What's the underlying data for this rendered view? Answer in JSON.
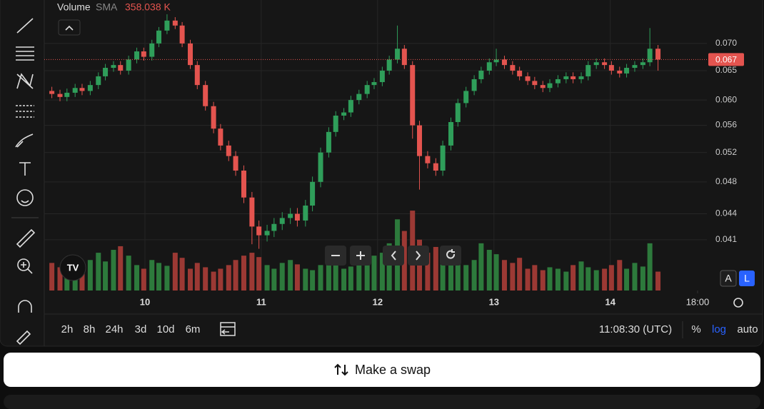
{
  "chart_data": {
    "type": "candlestick",
    "log_scale": true,
    "grid": true,
    "legend": {
      "title": "Volume",
      "indicator": "SMA",
      "value": "358.038 K"
    },
    "x": [
      9.2,
      9.27,
      9.33,
      9.4,
      9.46,
      9.53,
      9.6,
      9.66,
      9.73,
      9.79,
      9.86,
      9.93,
      9.99,
      10.06,
      10.12,
      10.19,
      10.26,
      10.32,
      10.39,
      10.45,
      10.52,
      10.59,
      10.65,
      10.72,
      10.78,
      10.85,
      10.92,
      10.98,
      11.05,
      11.11,
      11.18,
      11.25,
      11.31,
      11.38,
      11.44,
      11.51,
      11.58,
      11.64,
      11.71,
      11.77,
      11.84,
      11.91,
      11.97,
      12.04,
      12.1,
      12.17,
      12.23,
      12.3,
      12.36,
      12.43,
      12.5,
      12.56,
      12.63,
      12.69,
      12.76,
      12.83,
      12.89,
      12.96,
      13.02,
      13.09,
      13.16,
      13.22,
      13.29,
      13.35,
      13.42,
      13.48,
      13.55,
      13.62,
      13.68,
      13.75,
      13.81,
      13.88,
      13.95,
      14.01,
      14.08,
      14.14,
      14.21,
      14.28,
      14.34,
      14.41
    ],
    "ohlc": [
      [
        0.0615,
        0.0622,
        0.0603,
        0.061
      ],
      [
        0.061,
        0.0617,
        0.0598,
        0.0605
      ],
      [
        0.0605,
        0.0619,
        0.0598,
        0.0612
      ],
      [
        0.0612,
        0.0627,
        0.0605,
        0.062
      ],
      [
        0.062,
        0.0627,
        0.0608,
        0.0615
      ],
      [
        0.0615,
        0.0632,
        0.0608,
        0.0625
      ],
      [
        0.0625,
        0.0647,
        0.0618,
        0.064
      ],
      [
        0.064,
        0.0662,
        0.0633,
        0.0655
      ],
      [
        0.0655,
        0.0667,
        0.0648,
        0.066
      ],
      [
        0.066,
        0.0667,
        0.0643,
        0.065
      ],
      [
        0.065,
        0.0677,
        0.0643,
        0.067
      ],
      [
        0.067,
        0.0692,
        0.0663,
        0.0685
      ],
      [
        0.0685,
        0.0692,
        0.0668,
        0.0675
      ],
      [
        0.0675,
        0.0707,
        0.0668,
        0.07
      ],
      [
        0.07,
        0.0732,
        0.0693,
        0.0725
      ],
      [
        0.0725,
        0.0758,
        0.0718,
        0.0745
      ],
      [
        0.0745,
        0.0752,
        0.0728,
        0.0735
      ],
      [
        0.0735,
        0.0742,
        0.0693,
        0.07
      ],
      [
        0.07,
        0.0707,
        0.0653,
        0.066
      ],
      [
        0.066,
        0.0667,
        0.0618,
        0.0625
      ],
      [
        0.0625,
        0.0632,
        0.0583,
        0.059
      ],
      [
        0.059,
        0.0597,
        0.0548,
        0.0555
      ],
      [
        0.0555,
        0.0562,
        0.0523,
        0.053
      ],
      [
        0.053,
        0.0537,
        0.0508,
        0.0515
      ],
      [
        0.0515,
        0.0522,
        0.0488,
        0.0495
      ],
      [
        0.0495,
        0.0502,
        0.0453,
        0.046
      ],
      [
        0.046,
        0.0467,
        0.0405,
        0.0425
      ],
      [
        0.0425,
        0.0432,
        0.04,
        0.0415
      ],
      [
        0.0415,
        0.0427,
        0.0408,
        0.042
      ],
      [
        0.042,
        0.0435,
        0.0413,
        0.0428
      ],
      [
        0.0428,
        0.0442,
        0.0421,
        0.0435
      ],
      [
        0.0435,
        0.0447,
        0.0428,
        0.044
      ],
      [
        0.044,
        0.0447,
        0.0425,
        0.0432
      ],
      [
        0.0432,
        0.0457,
        0.0425,
        0.045
      ],
      [
        0.045,
        0.0487,
        0.0443,
        0.048
      ],
      [
        0.048,
        0.0527,
        0.0473,
        0.052
      ],
      [
        0.052,
        0.0557,
        0.0513,
        0.055
      ],
      [
        0.055,
        0.0582,
        0.0543,
        0.0575
      ],
      [
        0.0575,
        0.0587,
        0.0568,
        0.058
      ],
      [
        0.058,
        0.0607,
        0.0573,
        0.06
      ],
      [
        0.06,
        0.0617,
        0.0593,
        0.061
      ],
      [
        0.061,
        0.0632,
        0.0603,
        0.0625
      ],
      [
        0.0625,
        0.0637,
        0.0618,
        0.063
      ],
      [
        0.063,
        0.0657,
        0.0623,
        0.065
      ],
      [
        0.065,
        0.0677,
        0.0643,
        0.067
      ],
      [
        0.067,
        0.0735,
        0.0663,
        0.069
      ],
      [
        0.069,
        0.0697,
        0.0653,
        0.066
      ],
      [
        0.066,
        0.0667,
        0.054,
        0.056
      ],
      [
        0.056,
        0.0567,
        0.047,
        0.0515
      ],
      [
        0.0515,
        0.0522,
        0.0498,
        0.0505
      ],
      [
        0.0505,
        0.0512,
        0.0488,
        0.0495
      ],
      [
        0.0495,
        0.0537,
        0.0488,
        0.053
      ],
      [
        0.053,
        0.0572,
        0.0523,
        0.0565
      ],
      [
        0.0565,
        0.0602,
        0.0558,
        0.0595
      ],
      [
        0.0595,
        0.0622,
        0.0588,
        0.0615
      ],
      [
        0.0615,
        0.0642,
        0.0608,
        0.0635
      ],
      [
        0.0635,
        0.0657,
        0.0628,
        0.065
      ],
      [
        0.065,
        0.0672,
        0.0643,
        0.0665
      ],
      [
        0.0665,
        0.069,
        0.0658,
        0.067
      ],
      [
        0.067,
        0.0677,
        0.0653,
        0.066
      ],
      [
        0.066,
        0.0667,
        0.0643,
        0.065
      ],
      [
        0.065,
        0.0657,
        0.0633,
        0.064
      ],
      [
        0.064,
        0.0647,
        0.0625,
        0.0632
      ],
      [
        0.0632,
        0.0639,
        0.0618,
        0.0625
      ],
      [
        0.0625,
        0.0632,
        0.0613,
        0.062
      ],
      [
        0.062,
        0.0635,
        0.0613,
        0.0628
      ],
      [
        0.0628,
        0.0642,
        0.0621,
        0.0635
      ],
      [
        0.0635,
        0.0647,
        0.0628,
        0.064
      ],
      [
        0.064,
        0.0647,
        0.0628,
        0.0635
      ],
      [
        0.0635,
        0.0647,
        0.0628,
        0.064
      ],
      [
        0.064,
        0.0667,
        0.0633,
        0.066
      ],
      [
        0.066,
        0.0672,
        0.0653,
        0.0665
      ],
      [
        0.0665,
        0.0672,
        0.0653,
        0.066
      ],
      [
        0.066,
        0.0667,
        0.0643,
        0.065
      ],
      [
        0.065,
        0.0657,
        0.0638,
        0.0645
      ],
      [
        0.0645,
        0.0662,
        0.0638,
        0.0655
      ],
      [
        0.0655,
        0.0667,
        0.0648,
        0.066
      ],
      [
        0.066,
        0.0672,
        0.0653,
        0.0665
      ],
      [
        0.0665,
        0.073,
        0.0658,
        0.069
      ],
      [
        0.069,
        0.0697,
        0.065,
        0.067
      ]
    ],
    "volume": [
      380,
      320,
      450,
      300,
      280,
      420,
      520,
      400,
      560,
      610,
      480,
      350,
      300,
      420,
      380,
      340,
      520,
      450,
      300,
      380,
      320,
      260,
      300,
      350,
      420,
      480,
      520,
      460,
      350,
      300,
      380,
      420,
      360,
      300,
      280,
      350,
      420,
      380,
      300,
      330,
      420,
      360,
      480,
      520,
      650,
      980,
      820,
      1100,
      700,
      520,
      600,
      480,
      420,
      380,
      350,
      420,
      650,
      560,
      500,
      420,
      380,
      450,
      300,
      350,
      280,
      320,
      300,
      260,
      350,
      400,
      320,
      280,
      300,
      350,
      420,
      300,
      380,
      330,
      650,
      260
    ],
    "up_color": "#2f9e5a",
    "down_color": "#e4544f",
    "volume_up_color": "#2d7a3c",
    "volume_down_color": "#9c3934",
    "xlim": [
      9.184,
      14.83
    ],
    "xticks": [
      10,
      11,
      12,
      13,
      14,
      {
        "value": 14.75,
        "label": "18:00"
      }
    ],
    "ylim": [
      0.0357,
      0.0788
    ],
    "yticks": [
      {
        "value": 0.041,
        "label": "0.041"
      },
      {
        "value": 0.044,
        "label": "0.044"
      },
      {
        "value": 0.048,
        "label": "0.048"
      },
      {
        "value": 0.052,
        "label": "0.052"
      },
      {
        "value": 0.056,
        "label": "0.056"
      },
      {
        "value": 0.06,
        "label": "0.060"
      },
      {
        "value": 0.065,
        "label": "0.065"
      },
      {
        "value": 0.07,
        "label": "0.070"
      }
    ],
    "volume_ylim": [
      0,
      4000
    ],
    "last_price": {
      "value": 0.067,
      "label": "0.067"
    }
  },
  "toolbar": {
    "ranges": [
      "2h",
      "8h",
      "24h",
      "3d",
      "10d",
      "6m"
    ],
    "clock": "11:08:30 (UTC)",
    "percent": "%",
    "log": "log",
    "auto": "auto",
    "scale_a": "A",
    "scale_l": "L"
  },
  "swap_button": "Make a swap"
}
